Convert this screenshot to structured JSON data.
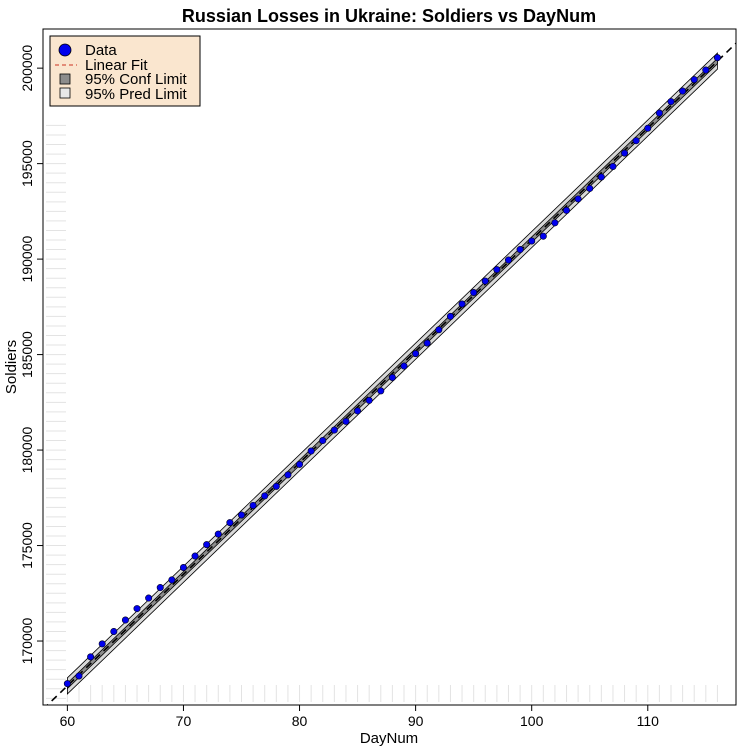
{
  "chart_data": {
    "type": "scatter",
    "title": "Russian Losses in Ukraine: Soldiers vs DayNum",
    "xlabel": "DayNum",
    "ylabel": "Soldiers",
    "xlim": [
      57.9,
      117.6
    ],
    "ylim": [
      166650,
      202050
    ],
    "x_ticks": [
      60,
      70,
      80,
      90,
      100,
      110
    ],
    "y_ticks": [
      170000,
      175000,
      180000,
      185000,
      190000,
      195000,
      200000
    ],
    "legend": {
      "position": "top-left",
      "background": "#fae6cf",
      "entries": [
        {
          "label": "Data",
          "kind": "point"
        },
        {
          "label": "Linear Fit",
          "kind": "dashed-line"
        },
        {
          "label": "95% Conf Limit",
          "kind": "dark-box"
        },
        {
          "label": "95% Pred Limit",
          "kind": "light-box"
        }
      ]
    },
    "fit": {
      "slope": 584.2,
      "intercept": 132600
    },
    "conf_halfwidth": 140,
    "pred_halfwidth": 420,
    "colors": {
      "point": "#0000ee",
      "fit_line": "#000000",
      "conf_band": "#8c8c8c",
      "pred_band": "#d9d9d9"
    },
    "series": [
      {
        "name": "Data",
        "x": [
          60,
          61,
          62,
          63,
          64,
          65,
          66,
          67,
          68,
          69,
          70,
          71,
          72,
          73,
          74,
          75,
          76,
          77,
          78,
          79,
          80,
          81,
          82,
          83,
          84,
          85,
          86,
          87,
          88,
          89,
          90,
          91,
          92,
          93,
          94,
          95,
          96,
          97,
          98,
          99,
          100,
          101,
          102,
          103,
          104,
          105,
          106,
          107,
          108,
          109,
          110,
          111,
          112,
          113,
          114,
          115,
          116
        ],
        "y": [
          167770,
          168170,
          169170,
          169850,
          170500,
          171100,
          171700,
          172250,
          172800,
          173200,
          173850,
          174450,
          175050,
          175600,
          176200,
          176600,
          177100,
          177600,
          178100,
          178700,
          179250,
          179950,
          180500,
          181050,
          181500,
          182050,
          182600,
          183100,
          183800,
          184400,
          185050,
          185600,
          186300,
          187000,
          187650,
          188250,
          188850,
          189450,
          189950,
          190500,
          190950,
          191200,
          191900,
          192550,
          193150,
          193700,
          194300,
          194850,
          195550,
          196200,
          196850,
          197650,
          198250,
          198800,
          199400,
          199900,
          200550
        ]
      }
    ]
  }
}
